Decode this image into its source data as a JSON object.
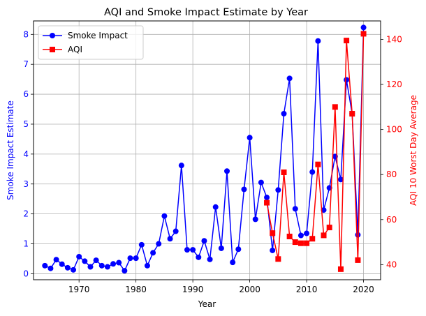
{
  "chart_data": {
    "type": "line",
    "title": "AQI and Smoke Impact Estimate by Year",
    "xlabel": "Year",
    "xlim": [
      1962,
      2023
    ],
    "x_ticks": [
      1970,
      1980,
      1990,
      2000,
      2010,
      2020
    ],
    "grid": true,
    "legend_position": "top-left",
    "left_axis": {
      "label": "Smoke Impact Estimate",
      "color": "#0000ff",
      "ylim": [
        -0.2,
        8.45
      ],
      "ticks": [
        0,
        1,
        2,
        3,
        4,
        5,
        6,
        7,
        8
      ]
    },
    "right_axis": {
      "label": "AQI 10 Worst Day Average",
      "color": "#ff0000",
      "ylim": [
        33.3,
        148.2
      ],
      "ticks": [
        40,
        60,
        80,
        100,
        120,
        140
      ]
    },
    "series": [
      {
        "name": "Smoke Impact",
        "axis": "left",
        "color": "#0000ff",
        "marker": "circle",
        "x": [
          1964,
          1965,
          1966,
          1967,
          1968,
          1969,
          1970,
          1971,
          1972,
          1973,
          1974,
          1975,
          1976,
          1977,
          1978,
          1979,
          1980,
          1981,
          1982,
          1983,
          1984,
          1985,
          1986,
          1987,
          1988,
          1989,
          1990,
          1991,
          1992,
          1993,
          1994,
          1995,
          1996,
          1997,
          1998,
          1999,
          2000,
          2001,
          2002,
          2003,
          2004,
          2005,
          2006,
          2007,
          2008,
          2009,
          2010,
          2011,
          2012,
          2013,
          2014,
          2015,
          2016,
          2017,
          2018,
          2019,
          2020
        ],
        "y": [
          0.27,
          0.18,
          0.47,
          0.32,
          0.2,
          0.13,
          0.57,
          0.42,
          0.23,
          0.45,
          0.27,
          0.23,
          0.33,
          0.37,
          0.1,
          0.52,
          0.52,
          0.97,
          0.27,
          0.7,
          1.0,
          1.93,
          1.17,
          1.42,
          3.62,
          0.8,
          0.8,
          0.55,
          1.1,
          0.48,
          2.23,
          0.85,
          3.43,
          0.38,
          0.82,
          2.82,
          4.55,
          1.82,
          3.05,
          2.55,
          0.78,
          2.8,
          5.35,
          6.53,
          2.17,
          1.28,
          1.35,
          3.4,
          7.78,
          2.13,
          2.87,
          3.92,
          3.15,
          6.48,
          5.35,
          1.3,
          8.23
        ]
      },
      {
        "name": "AQI",
        "axis": "right",
        "color": "#ff0000",
        "marker": "square",
        "x": [
          2003,
          2004,
          2005,
          2006,
          2007,
          2008,
          2009,
          2010,
          2011,
          2012,
          2013,
          2014,
          2015,
          2016,
          2017,
          2018,
          2019,
          2020
        ],
        "y": [
          67.5,
          54.0,
          42.5,
          81.0,
          52.5,
          50.0,
          49.5,
          49.5,
          51.5,
          84.5,
          53.0,
          56.5,
          110.0,
          38.0,
          139.5,
          107.0,
          42.0,
          142.5
        ]
      }
    ]
  }
}
